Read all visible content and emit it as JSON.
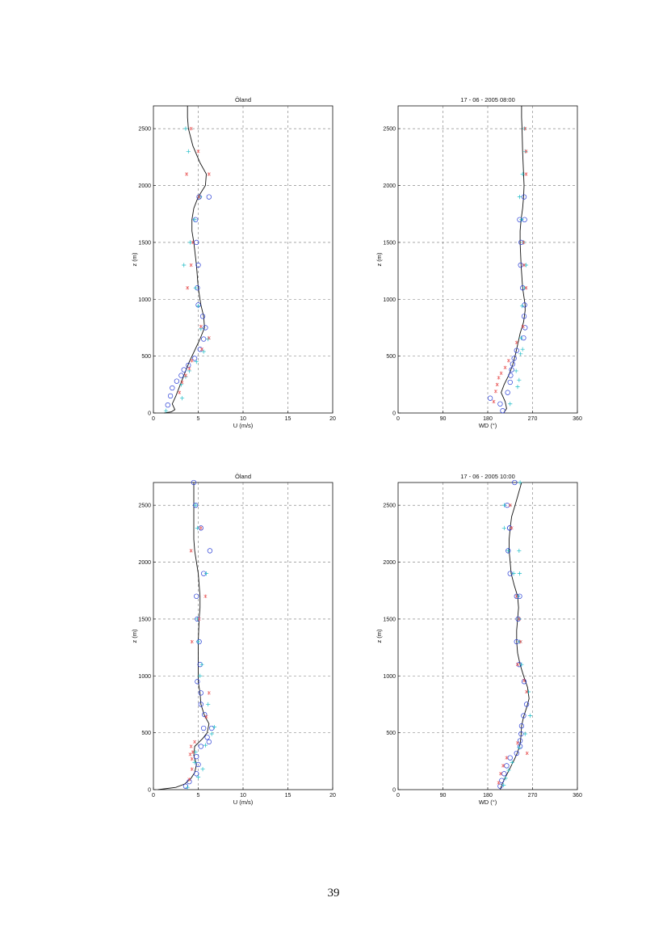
{
  "page_number": "39",
  "chart_data": [
    {
      "type": "scatter",
      "title": "Öland",
      "xlabel": "U  (m/s)",
      "ylabel": "z  (m)",
      "xlim": [
        0,
        20
      ],
      "ylim": [
        0,
        2700
      ],
      "xticks": [
        0,
        5,
        10,
        15,
        20
      ],
      "yticks": [
        0,
        500,
        1000,
        1500,
        2000,
        2500
      ],
      "grid": true,
      "line": {
        "x": [
          1.2,
          2.0,
          2.4,
          2.1,
          2.5,
          3.0,
          3.5,
          4.0,
          4.6,
          5.2,
          5.7,
          5.6,
          5.3,
          5.0,
          4.8,
          4.5,
          4.3,
          4.3,
          4.5,
          5.0,
          5.8,
          5.9,
          5.2,
          4.4,
          3.9,
          3.8,
          3.8
        ],
        "y": [
          0,
          10,
          30,
          80,
          150,
          250,
          350,
          450,
          550,
          650,
          750,
          850,
          950,
          1100,
          1300,
          1500,
          1600,
          1700,
          1800,
          1900,
          2000,
          2100,
          2200,
          2350,
          2500,
          2600,
          2700
        ]
      },
      "series": [
        {
          "marker": "o",
          "color": "#2a3fd6",
          "x": [
            1.6,
            1.9,
            2.1,
            2.6,
            3.1,
            3.4,
            3.9,
            4.6,
            5.2,
            5.6,
            5.8,
            5.5,
            5.0,
            4.9,
            5.0,
            4.8,
            4.7,
            5.1,
            6.2
          ],
          "y": [
            70,
            150,
            220,
            280,
            330,
            380,
            420,
            480,
            560,
            650,
            750,
            850,
            950,
            1100,
            1300,
            1500,
            1700,
            1900,
            1900
          ]
        },
        {
          "marker": "+",
          "color": "#1cbcc6",
          "x": [
            1.4,
            3.2,
            3.1,
            3.6,
            4.0,
            4.8,
            5.6,
            6.1,
            5.3,
            5.0,
            4.7,
            3.4,
            4.1,
            4.6,
            5.2,
            3.9,
            3.6
          ],
          "y": [
            20,
            130,
            250,
            320,
            370,
            450,
            540,
            650,
            740,
            940,
            1100,
            1300,
            1500,
            1700,
            1900,
            2300,
            2500
          ]
        },
        {
          "marker": "*",
          "color": "#e85555",
          "x": [
            2.9,
            3.2,
            3.6,
            4.0,
            4.3,
            5.4,
            6.2,
            5.3,
            3.8,
            4.2,
            4.4,
            5.1,
            6.2,
            3.7,
            5.0,
            4.2
          ],
          "y": [
            180,
            270,
            330,
            390,
            460,
            560,
            660,
            760,
            1100,
            1300,
            1500,
            1900,
            2100,
            2100,
            2300,
            2500
          ]
        }
      ]
    },
    {
      "type": "scatter",
      "title": "17 - 06 - 2005       08:00",
      "xlabel": "WD (°)",
      "ylabel": "z  (m)",
      "xlim": [
        0,
        360
      ],
      "ylim": [
        0,
        2700
      ],
      "xticks": [
        0,
        90,
        180,
        270,
        360
      ],
      "yticks": [
        0,
        500,
        1000,
        1500,
        2000,
        2500
      ],
      "grid": true,
      "line": {
        "x": [
          212,
          218,
          215,
          207,
          213,
          222,
          230,
          236,
          240,
          245,
          252,
          255,
          255,
          250,
          247,
          245,
          245,
          247,
          250,
          252,
          253,
          252,
          250,
          249,
          248,
          248
        ],
        "y": [
          0,
          40,
          100,
          180,
          250,
          330,
          420,
          520,
          600,
          700,
          800,
          900,
          950,
          1100,
          1300,
          1500,
          1600,
          1700,
          1800,
          1900,
          2000,
          2100,
          2300,
          2500,
          2600,
          2700
        ]
      },
      "series": [
        {
          "marker": "o",
          "color": "#2a3fd6",
          "x": [
            185,
            205,
            210,
            220,
            225,
            226,
            228,
            230,
            233,
            238,
            252,
            255,
            253,
            254,
            250,
            246,
            247,
            244,
            253,
            254
          ],
          "y": [
            130,
            80,
            20,
            180,
            270,
            330,
            380,
            430,
            480,
            550,
            660,
            750,
            850,
            950,
            1100,
            1300,
            1500,
            1700,
            1900,
            1700
          ]
        },
        {
          "marker": "+",
          "color": "#1cbcc6",
          "x": [
            225,
            240,
            243,
            237,
            246,
            250,
            247,
            249,
            254,
            257,
            252,
            248,
            244,
            250,
            256,
            254
          ],
          "y": [
            80,
            230,
            290,
            370,
            520,
            560,
            660,
            940,
            1100,
            1300,
            1500,
            1700,
            1900,
            2100,
            2300,
            2500
          ]
        },
        {
          "marker": "*",
          "color": "#e85555",
          "x": [
            192,
            196,
            199,
            202,
            207,
            215,
            222,
            238,
            251,
            257,
            253,
            252,
            257,
            257,
            255
          ],
          "y": [
            100,
            190,
            250,
            310,
            350,
            400,
            460,
            620,
            760,
            1100,
            1300,
            1500,
            2100,
            2300,
            2500
          ]
        }
      ]
    },
    {
      "type": "scatter",
      "title": "Öland",
      "xlabel": "U  (m/s)",
      "ylabel": "z  (m)",
      "xlim": [
        0,
        20
      ],
      "ylim": [
        0,
        2700
      ],
      "xticks": [
        0,
        5,
        10,
        15,
        20
      ],
      "yticks": [
        0,
        500,
        1000,
        1500,
        2000,
        2500
      ],
      "grid": true,
      "line": {
        "x": [
          0.5,
          2.5,
          3.5,
          4.2,
          4.6,
          4.8,
          4.5,
          4.6,
          5.5,
          6.0,
          6.2,
          5.7,
          5.3,
          5.2,
          5.0,
          5.0,
          5.0,
          5.0,
          5.1,
          5.2,
          5.2,
          5.0,
          4.8,
          4.6,
          4.5,
          4.5,
          4.5,
          4.5,
          4.5
        ],
        "y": [
          0,
          20,
          50,
          100,
          150,
          220,
          300,
          380,
          450,
          500,
          580,
          650,
          750,
          850,
          950,
          1100,
          1200,
          1300,
          1500,
          1600,
          1700,
          1900,
          2000,
          2100,
          2200,
          2300,
          2500,
          2600,
          2700
        ]
      },
      "series": [
        {
          "marker": "o",
          "color": "#2a3fd6",
          "x": [
            3.6,
            4.0,
            4.8,
            5.0,
            4.8,
            5.3,
            6.0,
            6.5,
            6.2,
            5.7,
            5.3,
            5.3,
            4.9,
            5.2,
            5.1,
            4.9,
            4.8,
            5.6,
            5.3,
            6.3,
            4.7,
            4.5,
            5.6
          ],
          "y": [
            30,
            70,
            140,
            220,
            290,
            380,
            460,
            540,
            420,
            660,
            750,
            850,
            950,
            1100,
            1300,
            1500,
            1700,
            1900,
            2300,
            2100,
            2500,
            2700,
            540
          ]
        },
        {
          "marker": "+",
          "color": "#1cbcc6",
          "x": [
            3.8,
            5.0,
            5.5,
            4.6,
            4.7,
            5.8,
            6.5,
            6.8,
            6.1,
            5.2,
            5.4,
            5.0,
            4.9,
            5.9,
            4.9,
            4.7
          ],
          "y": [
            20,
            110,
            180,
            240,
            330,
            390,
            490,
            550,
            750,
            1000,
            1100,
            1300,
            1500,
            1900,
            2300,
            2500
          ]
        },
        {
          "marker": "*",
          "color": "#e85555",
          "x": [
            4.0,
            4.3,
            4.3,
            4.1,
            4.2,
            4.4,
            4.6,
            6.2,
            5.9,
            5.1,
            4.3,
            4.2,
            5.8,
            5.3
          ],
          "y": [
            90,
            180,
            270,
            310,
            380,
            330,
            420,
            850,
            640,
            1500,
            1300,
            2100,
            1700,
            2300
          ]
        }
      ]
    },
    {
      "type": "scatter",
      "title": "17 - 06 - 2005       10:00",
      "xlabel": "WD (°)",
      "ylabel": "z  (m)",
      "xlim": [
        0,
        360
      ],
      "ylim": [
        0,
        2700
      ],
      "xticks": [
        0,
        90,
        180,
        270,
        360
      ],
      "yticks": [
        0,
        500,
        1000,
        1500,
        2000,
        2500
      ],
      "grid": true,
      "line": {
        "x": [
          205,
          210,
          218,
          226,
          234,
          240,
          245,
          247,
          248,
          252,
          258,
          263,
          260,
          252,
          245,
          240,
          238,
          238,
          240,
          242,
          240,
          233,
          227,
          225,
          223,
          223,
          225,
          228,
          235,
          248
        ],
        "y": [
          0,
          60,
          130,
          200,
          270,
          330,
          400,
          480,
          560,
          640,
          720,
          800,
          900,
          1000,
          1100,
          1200,
          1300,
          1400,
          1500,
          1600,
          1700,
          1800,
          1900,
          2000,
          2100,
          2200,
          2300,
          2400,
          2500,
          2700
        ]
      },
      "series": [
        {
          "marker": "o",
          "color": "#2a3fd6",
          "x": [
            205,
            208,
            213,
            218,
            225,
            238,
            245,
            245,
            247,
            248,
            252,
            258,
            253,
            243,
            238,
            241,
            244,
            238,
            225,
            221,
            224,
            224,
            219,
            234
          ],
          "y": [
            30,
            80,
            140,
            210,
            280,
            320,
            380,
            430,
            490,
            560,
            650,
            750,
            950,
            1100,
            1300,
            1500,
            1700,
            1700,
            1900,
            2100,
            2300,
            2300,
            2500,
            2700
          ]
        },
        {
          "marker": "+",
          "color": "#1cbcc6",
          "x": [
            212,
            216,
            222,
            229,
            243,
            255,
            265,
            262,
            248,
            244,
            243,
            241,
            244,
            243,
            221,
            213,
            213,
            232,
            245
          ],
          "y": [
            40,
            100,
            170,
            240,
            370,
            490,
            650,
            860,
            1100,
            1300,
            1500,
            1700,
            1900,
            2100,
            2100,
            2300,
            2500,
            1900,
            2700
          ]
        },
        {
          "marker": "*",
          "color": "#e85555",
          "x": [
            202,
            206,
            211,
            218,
            240,
            259,
            253,
            258,
            240,
            243,
            238,
            246,
            228,
            225
          ],
          "y": [
            60,
            140,
            210,
            280,
            410,
            320,
            960,
            860,
            1100,
            1500,
            1700,
            1300,
            2300,
            2500
          ]
        }
      ]
    }
  ]
}
